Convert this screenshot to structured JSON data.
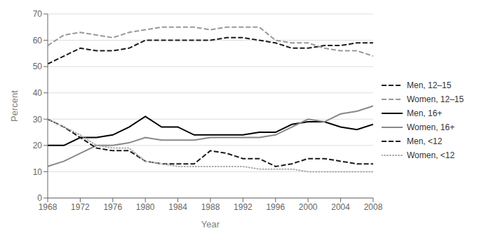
{
  "chart_data": {
    "type": "line",
    "xlabel": "Year",
    "ylabel": "Percent",
    "x": [
      1968,
      1970,
      1972,
      1974,
      1976,
      1978,
      1980,
      1982,
      1984,
      1986,
      1988,
      1990,
      1992,
      1994,
      1996,
      1998,
      2000,
      2002,
      2004,
      2006,
      2008
    ],
    "series": [
      {
        "name": "Men, 12–15",
        "color": "#1a1a1a",
        "line_style": "dashed",
        "values": [
          51,
          54,
          57,
          56,
          56,
          57,
          60,
          60,
          60,
          60,
          60,
          61,
          61,
          60,
          59,
          57,
          57,
          58,
          58,
          59,
          59
        ]
      },
      {
        "name": "Women, 12–15",
        "color": "#999999",
        "line_style": "dashed",
        "values": [
          58,
          62,
          63,
          62,
          61,
          63,
          64,
          65,
          65,
          65,
          64,
          65,
          65,
          65,
          60,
          59,
          59,
          57,
          56,
          56,
          54
        ]
      },
      {
        "name": "Men, 16+",
        "color": "#000000",
        "line_style": "solid",
        "values": [
          20,
          20,
          23,
          23,
          24,
          27,
          31,
          27,
          27,
          24,
          24,
          24,
          24,
          25,
          25,
          28,
          29,
          29,
          27,
          26,
          28
        ]
      },
      {
        "name": "Women, 16+",
        "color": "#888888",
        "line_style": "solid",
        "values": [
          12,
          14,
          17,
          20,
          20,
          21,
          23,
          22,
          22,
          22,
          23,
          23,
          23,
          23,
          24,
          27,
          30,
          29,
          32,
          33,
          35
        ]
      },
      {
        "name": "Men, <12",
        "color": "#1a1a1a",
        "line_style": "dashed",
        "values": [
          30,
          27,
          23,
          19,
          18,
          18,
          14,
          13,
          13,
          13,
          18,
          17,
          15,
          15,
          12,
          13,
          15,
          15,
          14,
          13,
          13
        ]
      },
      {
        "name": "Women, <12",
        "color": "#aaaaaa",
        "line_style": "dotted",
        "values": [
          30,
          27,
          24,
          20,
          19,
          19,
          14,
          13,
          12,
          12,
          12,
          12,
          12,
          11,
          11,
          11,
          10,
          10,
          10,
          10,
          10
        ]
      }
    ],
    "xlim": [
      1968,
      2008
    ],
    "xticks": [
      1968,
      1972,
      1976,
      1980,
      1984,
      1988,
      1992,
      1996,
      2000,
      2004,
      2008
    ],
    "ylim": [
      0,
      70
    ],
    "yticks": [
      0,
      10,
      20,
      30,
      40,
      50,
      60,
      70
    ],
    "grid": true,
    "legend": "right"
  }
}
